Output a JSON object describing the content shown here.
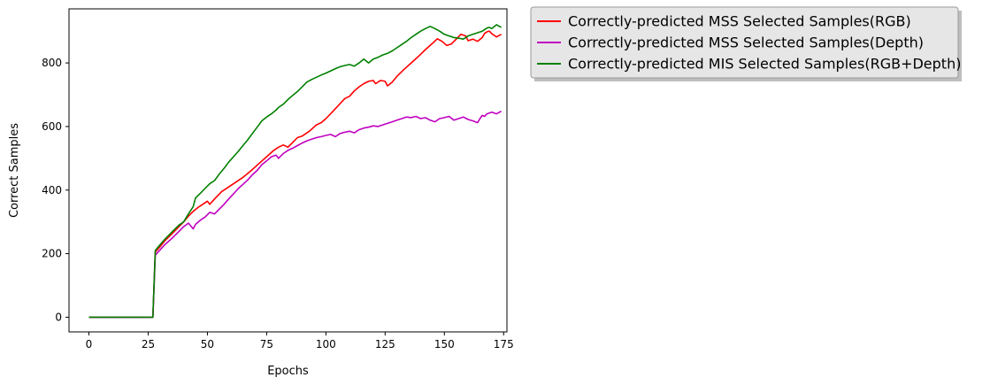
{
  "chart_data": {
    "type": "line",
    "xlabel": "Epochs",
    "ylabel": "Correct Samples",
    "xlim": [
      -8.4,
      176.4
    ],
    "ylim": [
      -46.2,
      970.2
    ],
    "xticks": [
      0,
      25,
      50,
      75,
      100,
      125,
      150,
      175
    ],
    "yticks": [
      0,
      200,
      400,
      600,
      800
    ],
    "grid": false,
    "legend_position": "outside-top-right",
    "series": [
      {
        "name": "Correctly-predicted MSS Selected Samples(RGB)",
        "color": "#ff0000",
        "points": [
          [
            0,
            0
          ],
          [
            27,
            0
          ],
          [
            28,
            205
          ],
          [
            30,
            222
          ],
          [
            32,
            240
          ],
          [
            35,
            262
          ],
          [
            38,
            285
          ],
          [
            40,
            300
          ],
          [
            42,
            318
          ],
          [
            44,
            333
          ],
          [
            46,
            345
          ],
          [
            48,
            355
          ],
          [
            50,
            365
          ],
          [
            51,
            355
          ],
          [
            53,
            372
          ],
          [
            56,
            395
          ],
          [
            59,
            410
          ],
          [
            62,
            425
          ],
          [
            65,
            440
          ],
          [
            68,
            458
          ],
          [
            72,
            485
          ],
          [
            75,
            505
          ],
          [
            78,
            525
          ],
          [
            80,
            535
          ],
          [
            82,
            542
          ],
          [
            84,
            535
          ],
          [
            86,
            550
          ],
          [
            88,
            565
          ],
          [
            90,
            570
          ],
          [
            93,
            585
          ],
          [
            96,
            605
          ],
          [
            98,
            612
          ],
          [
            100,
            625
          ],
          [
            103,
            648
          ],
          [
            106,
            672
          ],
          [
            108,
            688
          ],
          [
            110,
            695
          ],
          [
            112,
            712
          ],
          [
            114,
            725
          ],
          [
            116,
            735
          ],
          [
            118,
            742
          ],
          [
            120,
            745
          ],
          [
            121,
            735
          ],
          [
            123,
            745
          ],
          [
            125,
            742
          ],
          [
            126,
            728
          ],
          [
            128,
            740
          ],
          [
            130,
            758
          ],
          [
            133,
            780
          ],
          [
            136,
            800
          ],
          [
            139,
            820
          ],
          [
            142,
            842
          ],
          [
            145,
            862
          ],
          [
            147,
            876
          ],
          [
            149,
            868
          ],
          [
            151,
            855
          ],
          [
            153,
            860
          ],
          [
            155,
            875
          ],
          [
            157,
            890
          ],
          [
            159,
            885
          ],
          [
            160,
            870
          ],
          [
            162,
            875
          ],
          [
            164,
            868
          ],
          [
            166,
            880
          ],
          [
            167,
            893
          ],
          [
            168,
            898
          ],
          [
            169,
            900
          ],
          [
            170,
            892
          ],
          [
            172,
            882
          ],
          [
            174,
            890
          ]
        ]
      },
      {
        "name": "Correctly-predicted MSS Selected Samples(Depth)",
        "color": "#bf00bf",
        "points": [
          [
            0,
            0
          ],
          [
            27,
            0
          ],
          [
            28,
            195
          ],
          [
            30,
            212
          ],
          [
            32,
            228
          ],
          [
            35,
            248
          ],
          [
            38,
            270
          ],
          [
            40,
            285
          ],
          [
            42,
            296
          ],
          [
            44,
            278
          ],
          [
            45,
            292
          ],
          [
            47,
            305
          ],
          [
            49,
            315
          ],
          [
            51,
            330
          ],
          [
            53,
            325
          ],
          [
            55,
            340
          ],
          [
            57,
            355
          ],
          [
            59,
            372
          ],
          [
            61,
            388
          ],
          [
            63,
            405
          ],
          [
            65,
            418
          ],
          [
            67,
            432
          ],
          [
            69,
            448
          ],
          [
            71,
            462
          ],
          [
            73,
            480
          ],
          [
            75,
            492
          ],
          [
            77,
            505
          ],
          [
            79,
            510
          ],
          [
            80,
            500
          ],
          [
            82,
            515
          ],
          [
            84,
            525
          ],
          [
            86,
            532
          ],
          [
            88,
            540
          ],
          [
            90,
            548
          ],
          [
            92,
            555
          ],
          [
            94,
            560
          ],
          [
            96,
            565
          ],
          [
            98,
            568
          ],
          [
            100,
            572
          ],
          [
            102,
            575
          ],
          [
            104,
            568
          ],
          [
            106,
            578
          ],
          [
            108,
            582
          ],
          [
            110,
            585
          ],
          [
            112,
            580
          ],
          [
            114,
            590
          ],
          [
            116,
            595
          ],
          [
            118,
            598
          ],
          [
            120,
            602
          ],
          [
            122,
            600
          ],
          [
            124,
            605
          ],
          [
            126,
            610
          ],
          [
            128,
            615
          ],
          [
            130,
            620
          ],
          [
            132,
            625
          ],
          [
            134,
            630
          ],
          [
            136,
            628
          ],
          [
            138,
            632
          ],
          [
            140,
            625
          ],
          [
            142,
            628
          ],
          [
            144,
            620
          ],
          [
            146,
            615
          ],
          [
            148,
            625
          ],
          [
            150,
            628
          ],
          [
            152,
            632
          ],
          [
            154,
            620
          ],
          [
            156,
            625
          ],
          [
            158,
            630
          ],
          [
            160,
            622
          ],
          [
            162,
            618
          ],
          [
            164,
            612
          ],
          [
            165,
            625
          ],
          [
            166,
            635
          ],
          [
            167,
            632
          ],
          [
            168,
            640
          ],
          [
            170,
            645
          ],
          [
            172,
            640
          ],
          [
            174,
            648
          ]
        ]
      },
      {
        "name": "Correctly-predicted MIS Selected Samples(RGB+Depth)",
        "color": "#008000",
        "points": [
          [
            0,
            0
          ],
          [
            27,
            0
          ],
          [
            28,
            210
          ],
          [
            30,
            228
          ],
          [
            32,
            245
          ],
          [
            35,
            268
          ],
          [
            38,
            290
          ],
          [
            40,
            300
          ],
          [
            42,
            325
          ],
          [
            44,
            348
          ],
          [
            45,
            375
          ],
          [
            47,
            390
          ],
          [
            49,
            405
          ],
          [
            51,
            420
          ],
          [
            53,
            430
          ],
          [
            55,
            450
          ],
          [
            57,
            468
          ],
          [
            59,
            488
          ],
          [
            61,
            505
          ],
          [
            63,
            522
          ],
          [
            65,
            540
          ],
          [
            67,
            558
          ],
          [
            69,
            578
          ],
          [
            71,
            598
          ],
          [
            73,
            618
          ],
          [
            75,
            630
          ],
          [
            77,
            640
          ],
          [
            79,
            652
          ],
          [
            80,
            660
          ],
          [
            82,
            670
          ],
          [
            84,
            685
          ],
          [
            86,
            698
          ],
          [
            88,
            710
          ],
          [
            90,
            725
          ],
          [
            92,
            740
          ],
          [
            94,
            748
          ],
          [
            96,
            755
          ],
          [
            98,
            762
          ],
          [
            100,
            768
          ],
          [
            102,
            775
          ],
          [
            104,
            782
          ],
          [
            106,
            788
          ],
          [
            108,
            792
          ],
          [
            110,
            795
          ],
          [
            112,
            790
          ],
          [
            114,
            800
          ],
          [
            116,
            812
          ],
          [
            118,
            800
          ],
          [
            120,
            812
          ],
          [
            122,
            818
          ],
          [
            124,
            825
          ],
          [
            126,
            830
          ],
          [
            128,
            838
          ],
          [
            130,
            848
          ],
          [
            132,
            858
          ],
          [
            134,
            868
          ],
          [
            136,
            880
          ],
          [
            138,
            890
          ],
          [
            140,
            900
          ],
          [
            142,
            908
          ],
          [
            144,
            915
          ],
          [
            146,
            908
          ],
          [
            148,
            900
          ],
          [
            150,
            890
          ],
          [
            152,
            885
          ],
          [
            154,
            880
          ],
          [
            156,
            878
          ],
          [
            158,
            875
          ],
          [
            160,
            885
          ],
          [
            162,
            890
          ],
          [
            164,
            895
          ],
          [
            166,
            900
          ],
          [
            167,
            905
          ],
          [
            168,
            910
          ],
          [
            169,
            912
          ],
          [
            170,
            908
          ],
          [
            172,
            920
          ],
          [
            174,
            912
          ]
        ]
      }
    ]
  }
}
